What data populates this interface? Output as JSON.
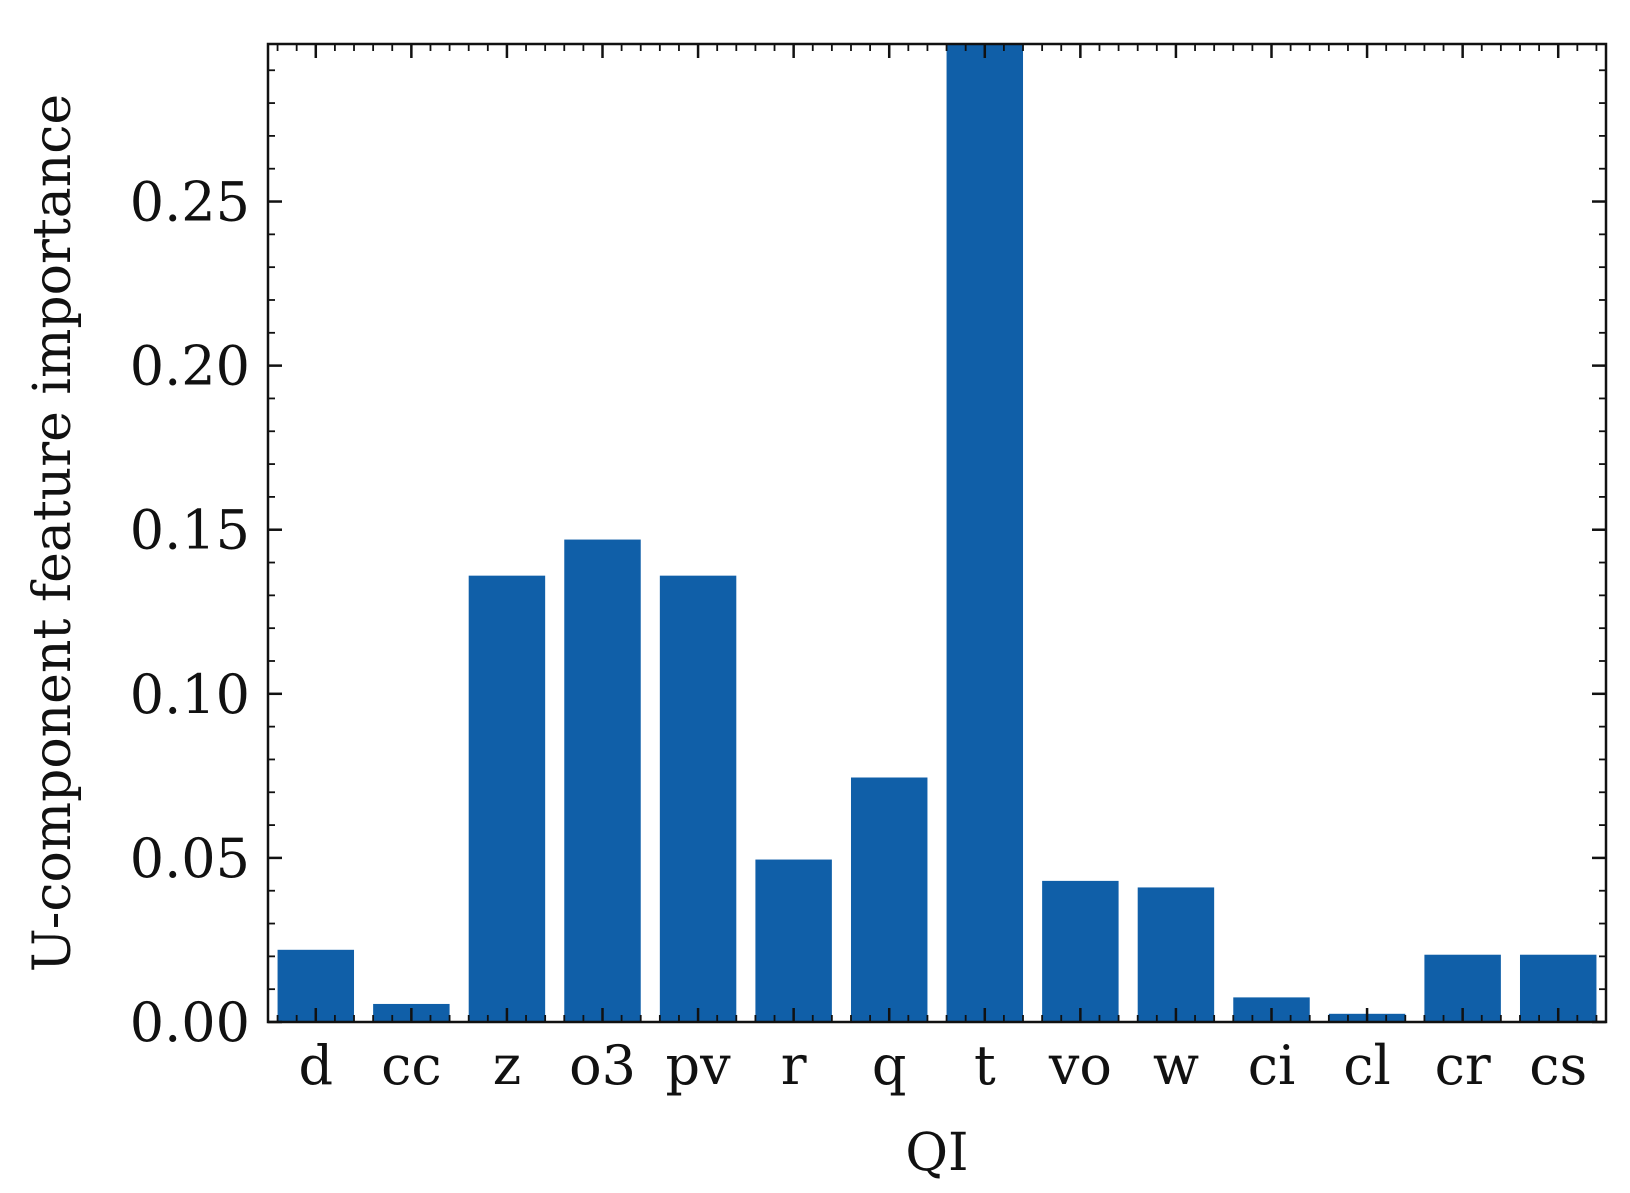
{
  "chart_data": {
    "type": "bar",
    "xlabel": "QI",
    "ylabel": "U-component feature importance",
    "categories": [
      "d",
      "cc",
      "z",
      "o3",
      "pv",
      "r",
      "q",
      "t",
      "vo",
      "w",
      "ci",
      "cl",
      "cr",
      "cs"
    ],
    "values": [
      0.022,
      0.0055,
      0.136,
      0.147,
      0.136,
      0.0495,
      0.0745,
      0.298,
      0.043,
      0.041,
      0.0075,
      0.0025,
      0.0205,
      0.0205
    ],
    "ylim": [
      0,
      0.298
    ],
    "yticks": [
      0.0,
      0.05,
      0.1,
      0.15,
      0.2,
      0.25
    ],
    "ytick_labels": [
      "0.00",
      "0.05",
      "0.10",
      "0.15",
      "0.20",
      "0.25"
    ],
    "bar_color": "#105fa8",
    "grid": false,
    "legend": "none"
  }
}
